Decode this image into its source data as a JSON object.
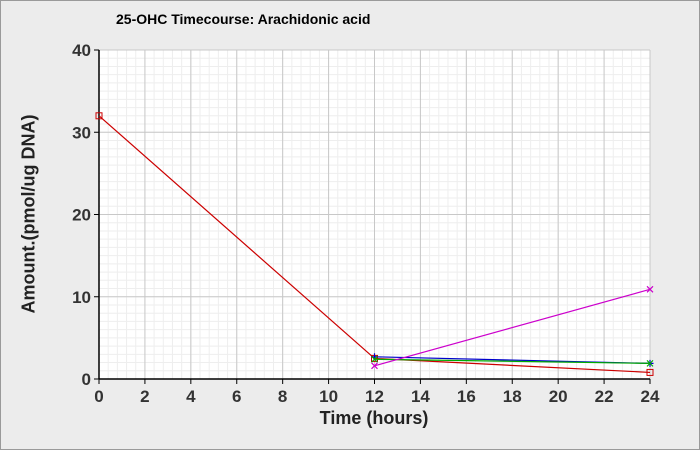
{
  "chart_data": {
    "type": "line",
    "title": "25-OHC Timecourse: Arachidonic acid",
    "xlabel": "Time (hours)",
    "ylabel": "Amount.(pmol/ug DNA)",
    "xlim": [
      0,
      24
    ],
    "ylim": [
      0,
      40
    ],
    "x_ticks": [
      0,
      2,
      4,
      6,
      8,
      10,
      12,
      14,
      16,
      18,
      20,
      22,
      24
    ],
    "y_ticks": [
      0,
      10,
      20,
      30,
      40
    ],
    "grid": true,
    "series": [
      {
        "color": "#cc0000",
        "marker": "square",
        "x": [
          0,
          12,
          24
        ],
        "y": [
          32,
          2.5,
          0.8
        ]
      },
      {
        "color": "#0000cc",
        "marker": "plus",
        "x": [
          12,
          24
        ],
        "y": [
          2.7,
          1.9
        ]
      },
      {
        "color": "#00aa00",
        "marker": "x",
        "x": [
          12,
          24
        ],
        "y": [
          2.4,
          1.9
        ]
      },
      {
        "color": "#cc00cc",
        "marker": "x",
        "x": [
          12,
          24
        ],
        "y": [
          1.6,
          10.9
        ]
      }
    ]
  }
}
